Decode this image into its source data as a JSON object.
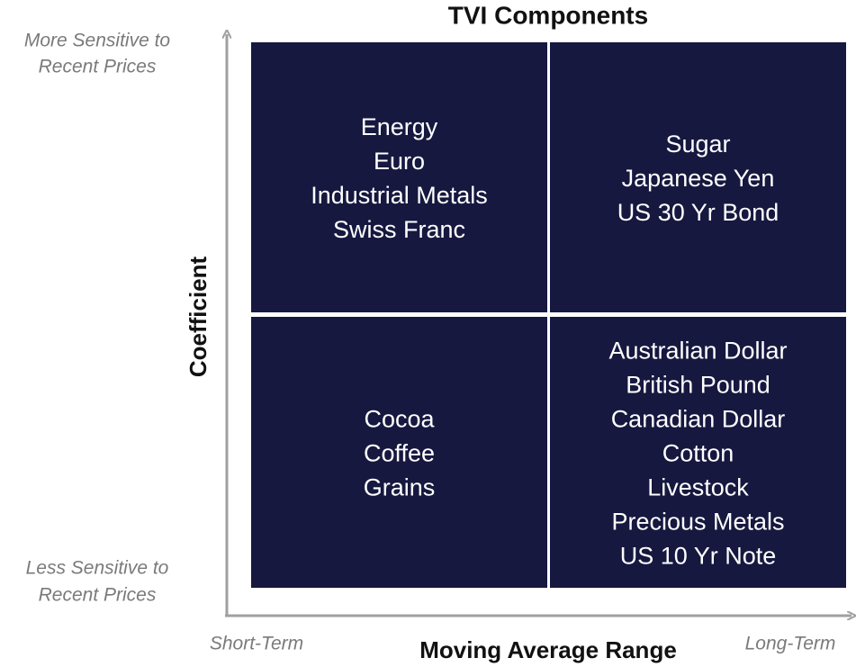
{
  "title": "TVI Components",
  "y_axis": {
    "label": "Coefficient",
    "top_label": [
      "More Sensitive to",
      "Recent Prices"
    ],
    "bottom_label": [
      "Less Sensitive to",
      "Recent Prices"
    ]
  },
  "x_axis": {
    "label": "Moving Average Range",
    "left_label": "Short-Term",
    "right_label": "Long-Term"
  },
  "quadrants": [
    {
      "items": [
        "Energy",
        "Euro",
        "Industrial Metals",
        "Swiss Franc"
      ]
    },
    {
      "items": [
        "Sugar",
        "Japanese Yen",
        "US 30 Yr Bond"
      ]
    },
    {
      "items": [
        "Cocoa",
        "Coffee",
        "Grains"
      ]
    },
    {
      "items": [
        "Australian Dollar",
        "British Pound",
        "Canadian Dollar",
        "Cotton",
        "Livestock",
        "Precious Metals",
        "US 10 Yr Note"
      ]
    }
  ]
}
